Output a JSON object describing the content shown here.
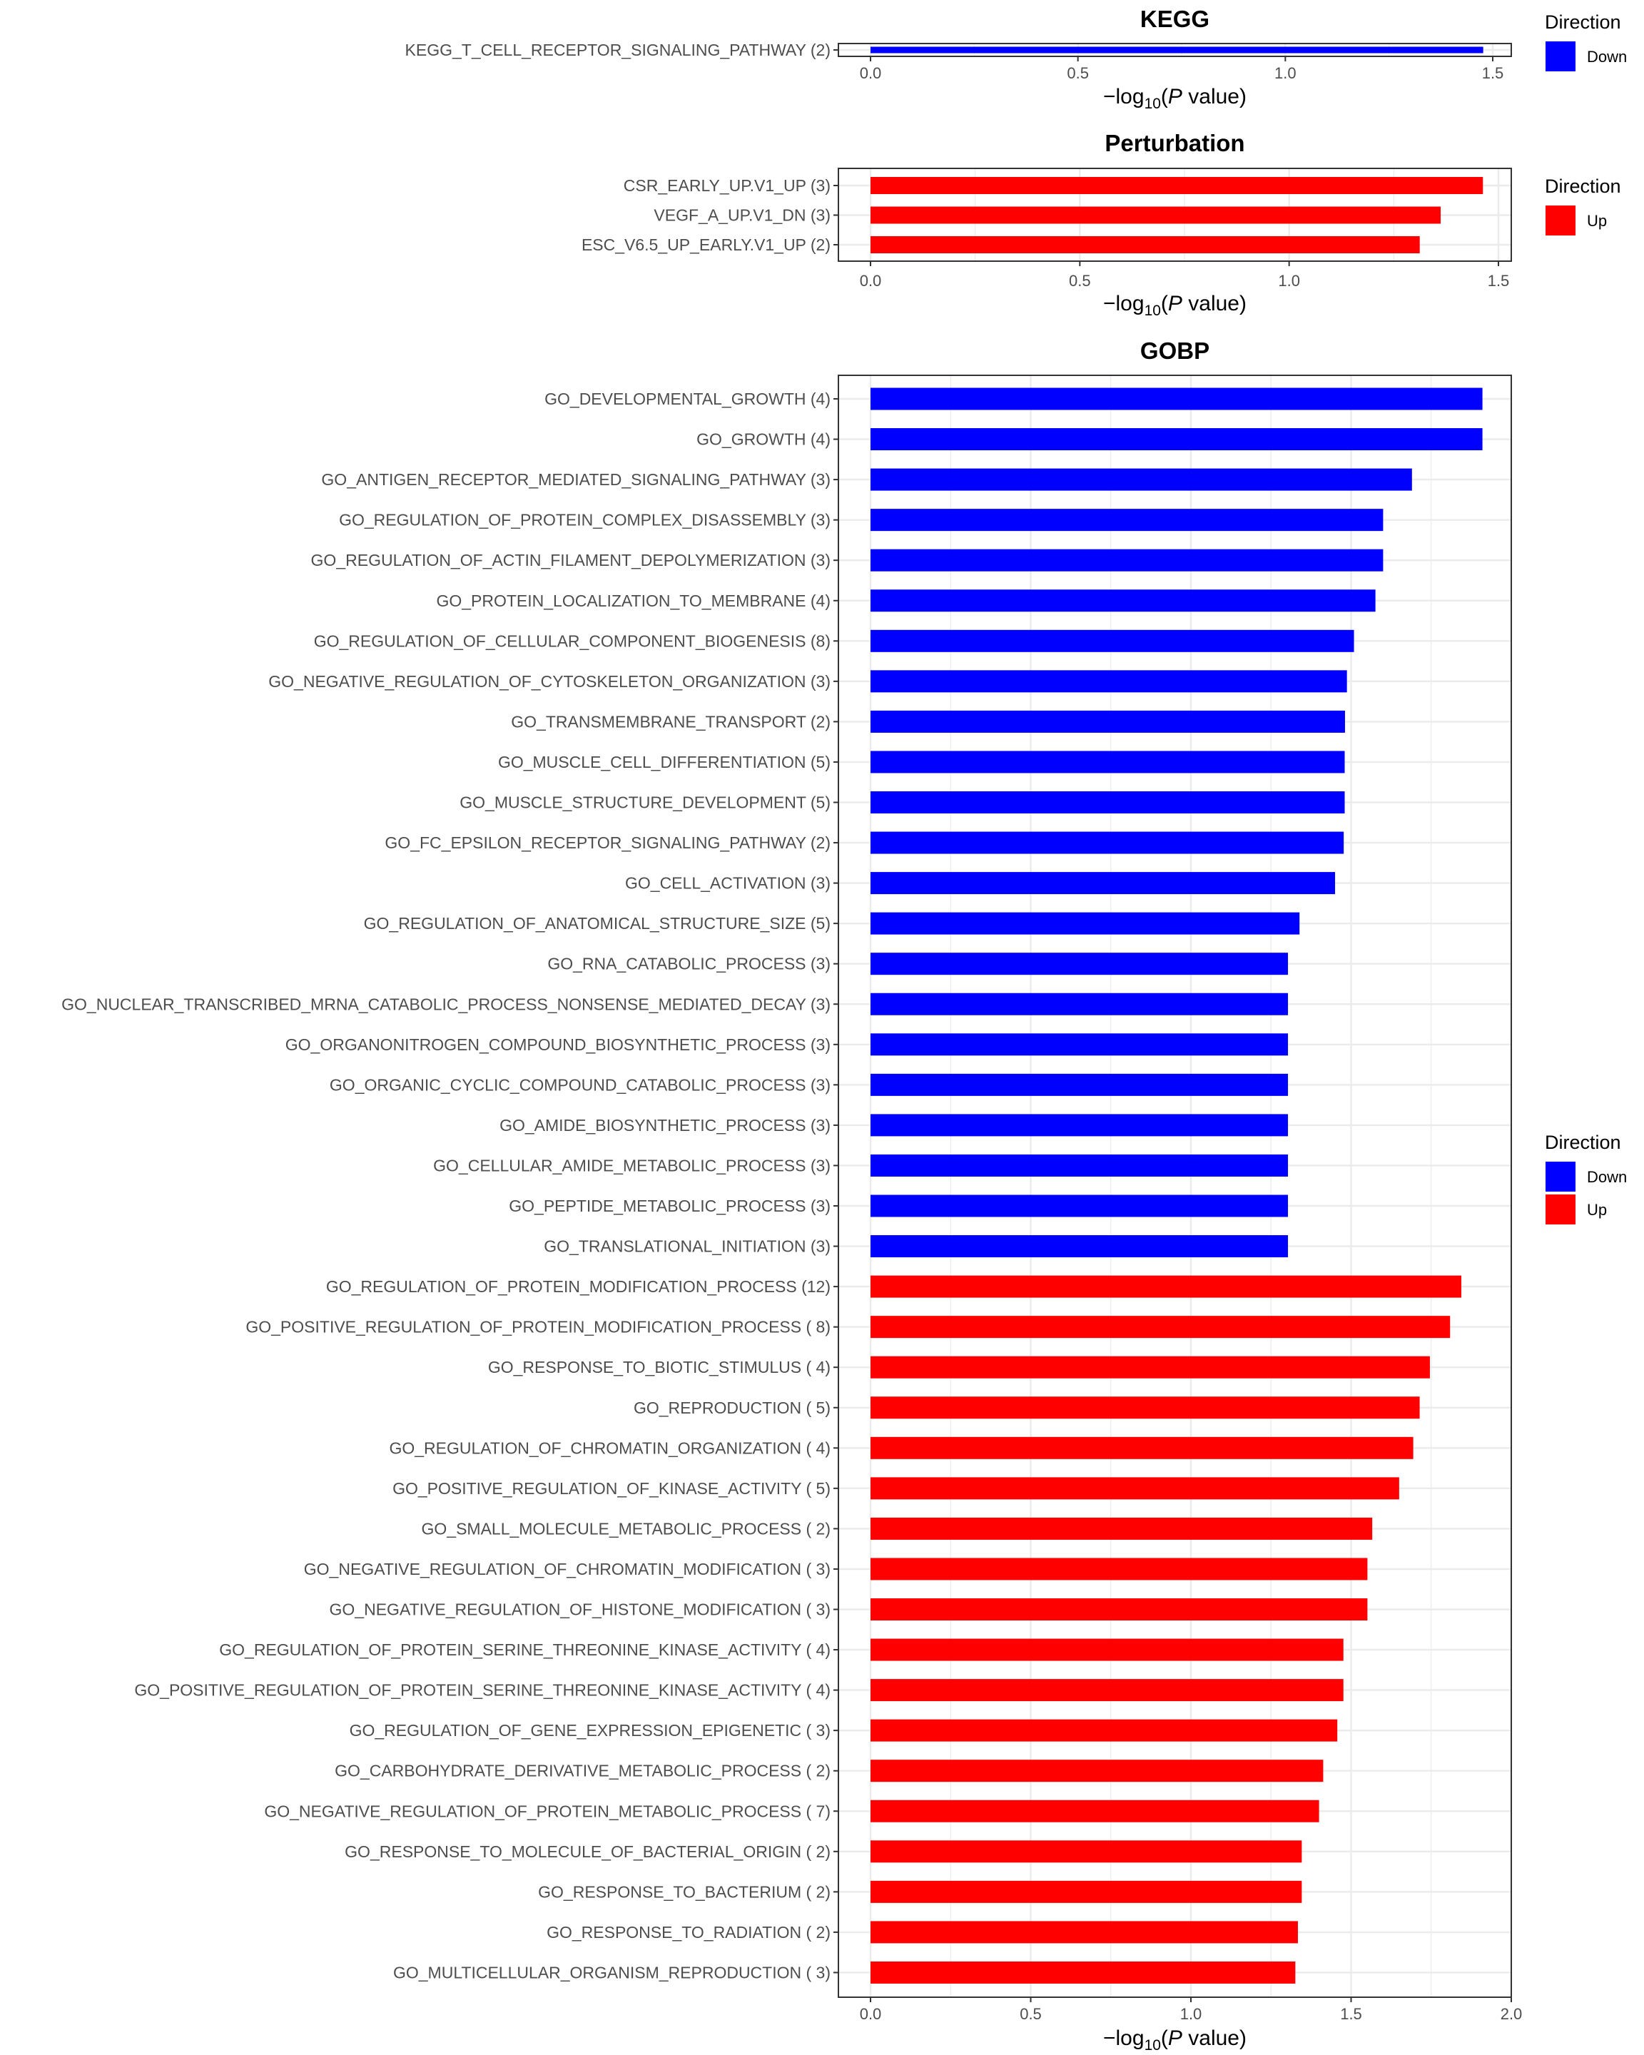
{
  "chart_data": [
    {
      "type": "bar",
      "orientation": "horizontal",
      "title": "KEGG",
      "xlabel": "-log10(P value)",
      "xlim": [
        0,
        1.5
      ],
      "xticks": [
        "0.0",
        "0.5",
        "1.0",
        "1.5"
      ],
      "grid": true,
      "legend": {
        "title": "Direction",
        "position": "right",
        "entries": [
          {
            "label": "Down",
            "color": "#0000ff"
          }
        ]
      },
      "categories": [
        "KEGG_T_CELL_RECEPTOR_SIGNALING_PATHWAY (2)"
      ],
      "values": [
        1.477
      ],
      "directions": [
        "Down"
      ]
    },
    {
      "type": "bar",
      "orientation": "horizontal",
      "title": "Perturbation",
      "xlabel": "-log10(P value)",
      "xlim": [
        0,
        1.5
      ],
      "xticks": [
        "0.0",
        "0.5",
        "1.0",
        "1.5"
      ],
      "grid": true,
      "legend": {
        "title": "Direction",
        "position": "right",
        "entries": [
          {
            "label": "Up",
            "color": "#ff0000"
          }
        ]
      },
      "categories": [
        "CSR_EARLY_UP.V1_UP (3)",
        "VEGF_A_UP.V1_DN (3)",
        "ESC_V6.5_UP_EARLY.V1_UP (2)"
      ],
      "values": [
        1.463,
        1.362,
        1.312
      ],
      "directions": [
        "Up",
        "Up",
        "Up"
      ]
    },
    {
      "type": "bar",
      "orientation": "horizontal",
      "title": "GOBP",
      "xlabel": "-log10(P value)",
      "xlim": [
        0,
        2.0
      ],
      "xticks": [
        "0.0",
        "0.5",
        "1.0",
        "1.5",
        "2.0"
      ],
      "grid": true,
      "legend": {
        "title": "Direction",
        "position": "right",
        "entries": [
          {
            "label": "Down",
            "color": "#0000ff"
          },
          {
            "label": "Up",
            "color": "#ff0000"
          }
        ]
      },
      "categories": [
        "GO_DEVELOPMENTAL_GROWTH (4)",
        "GO_GROWTH (4)",
        "GO_ANTIGEN_RECEPTOR_MEDIATED_SIGNALING_PATHWAY (3)",
        "GO_REGULATION_OF_PROTEIN_COMPLEX_DISASSEMBLY (3)",
        "GO_REGULATION_OF_ACTIN_FILAMENT_DEPOLYMERIZATION (3)",
        "GO_PROTEIN_LOCALIZATION_TO_MEMBRANE (4)",
        "GO_REGULATION_OF_CELLULAR_COMPONENT_BIOGENESIS (8)",
        "GO_NEGATIVE_REGULATION_OF_CYTOSKELETON_ORGANIZATION (3)",
        "GO_TRANSMEMBRANE_TRANSPORT (2)",
        "GO_MUSCLE_CELL_DIFFERENTIATION (5)",
        "GO_MUSCLE_STRUCTURE_DEVELOPMENT (5)",
        "GO_FC_EPSILON_RECEPTOR_SIGNALING_PATHWAY (2)",
        "GO_CELL_ACTIVATION (3)",
        "GO_REGULATION_OF_ANATOMICAL_STRUCTURE_SIZE (5)",
        "GO_RNA_CATABOLIC_PROCESS (3)",
        "GO_NUCLEAR_TRANSCRIBED_MRNA_CATABOLIC_PROCESS_NONSENSE_MEDIATED_DECAY (3)",
        "GO_ORGANONITROGEN_COMPOUND_BIOSYNTHETIC_PROCESS (3)",
        "GO_ORGANIC_CYCLIC_COMPOUND_CATABOLIC_PROCESS (3)",
        "GO_AMIDE_BIOSYNTHETIC_PROCESS (3)",
        "GO_CELLULAR_AMIDE_METABOLIC_PROCESS (3)",
        "GO_PEPTIDE_METABOLIC_PROCESS (3)",
        "GO_TRANSLATIONAL_INITIATION (3)",
        "GO_REGULATION_OF_PROTEIN_MODIFICATION_PROCESS (12)",
        "GO_POSITIVE_REGULATION_OF_PROTEIN_MODIFICATION_PROCESS ( 8)",
        "GO_RESPONSE_TO_BIOTIC_STIMULUS ( 4)",
        "GO_REPRODUCTION ( 5)",
        "GO_REGULATION_OF_CHROMATIN_ORGANIZATION ( 4)",
        "GO_POSITIVE_REGULATION_OF_KINASE_ACTIVITY ( 5)",
        "GO_SMALL_MOLECULE_METABOLIC_PROCESS ( 2)",
        "GO_NEGATIVE_REGULATION_OF_CHROMATIN_MODIFICATION ( 3)",
        "GO_NEGATIVE_REGULATION_OF_HISTONE_MODIFICATION ( 3)",
        "GO_REGULATION_OF_PROTEIN_SERINE_THREONINE_KINASE_ACTIVITY ( 4)",
        "GO_POSITIVE_REGULATION_OF_PROTEIN_SERINE_THREONINE_KINASE_ACTIVITY ( 4)",
        "GO_REGULATION_OF_GENE_EXPRESSION_EPIGENETIC ( 3)",
        "GO_CARBOHYDRATE_DERIVATIVE_METABOLIC_PROCESS ( 2)",
        "GO_NEGATIVE_REGULATION_OF_PROTEIN_METABOLIC_PROCESS ( 7)",
        "GO_RESPONSE_TO_MOLECULE_OF_BACTERIAL_ORIGIN ( 2)",
        "GO_RESPONSE_TO_BACTERIUM ( 2)",
        "GO_RESPONSE_TO_RADIATION ( 2)",
        "GO_MULTICELLULAR_ORGANISM_REPRODUCTION ( 3)"
      ],
      "values": [
        1.91,
        1.91,
        1.69,
        1.6,
        1.6,
        1.576,
        1.509,
        1.487,
        1.481,
        1.48,
        1.48,
        1.477,
        1.45,
        1.339,
        1.303,
        1.303,
        1.303,
        1.303,
        1.303,
        1.303,
        1.303,
        1.303,
        1.844,
        1.809,
        1.746,
        1.714,
        1.694,
        1.65,
        1.566,
        1.551,
        1.551,
        1.476,
        1.476,
        1.457,
        1.413,
        1.4,
        1.346,
        1.346,
        1.334,
        1.326
      ],
      "directions": [
        "Down",
        "Down",
        "Down",
        "Down",
        "Down",
        "Down",
        "Down",
        "Down",
        "Down",
        "Down",
        "Down",
        "Down",
        "Down",
        "Down",
        "Down",
        "Down",
        "Down",
        "Down",
        "Down",
        "Down",
        "Down",
        "Down",
        "Up",
        "Up",
        "Up",
        "Up",
        "Up",
        "Up",
        "Up",
        "Up",
        "Up",
        "Up",
        "Up",
        "Up",
        "Up",
        "Up",
        "Up",
        "Up",
        "Up",
        "Up"
      ]
    }
  ],
  "colors": {
    "Down": "#0000ff",
    "Up": "#ff0000"
  }
}
